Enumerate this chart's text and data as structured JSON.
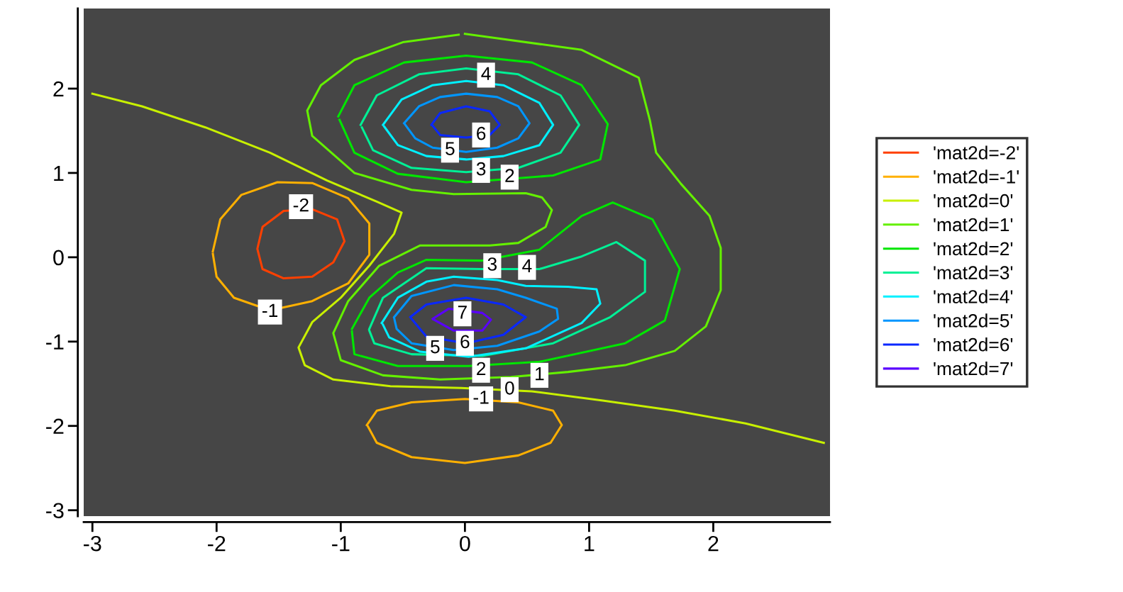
{
  "chart_data": {
    "type": "line",
    "xlim": [
      -3.07,
      2.94
    ],
    "ylim": [
      -3.07,
      2.95
    ],
    "xticks": [
      -3,
      -2,
      -1,
      0,
      1,
      2
    ],
    "yticks": [
      -3,
      -2,
      -1,
      0,
      1,
      2
    ],
    "grid": false,
    "legend": "right",
    "line_style": "solid",
    "marker": "none",
    "series": [
      {
        "name": "'mat2d=-2'",
        "color": "#ff4000",
        "x": [
          -1.67,
          -1.63,
          -1.46,
          -1.23,
          -1.03,
          -0.97,
          -1.06,
          -1.23,
          -1.46,
          -1.63,
          -1.67
        ],
        "values": [
          0.11,
          0.36,
          0.55,
          0.57,
          0.45,
          0.19,
          -0.06,
          -0.23,
          -0.25,
          -0.14,
          0.09
        ]
      },
      {
        "name": "'mat2d=-1'",
        "color": "#ffb000",
        "x": [
          -2.03,
          -1.97,
          -1.8,
          -1.51,
          -1.23,
          -0.94,
          -0.77,
          -0.77,
          -0.94,
          -1.23,
          -1.57,
          -1.86,
          -2.0,
          -2.03,
          null,
          -0.79,
          -0.71,
          -0.43,
          0,
          0.43,
          0.71,
          0.78,
          0.69,
          0.43,
          0,
          -0.43,
          -0.71,
          -0.78
        ],
        "values": [
          0.07,
          0.45,
          0.74,
          0.89,
          0.88,
          0.7,
          0.4,
          0.03,
          -0.31,
          -0.52,
          -0.63,
          -0.48,
          -0.23,
          0.04,
          null,
          -1.99,
          -1.82,
          -1.72,
          -1.68,
          -1.72,
          -1.82,
          -1.99,
          -2.2,
          -2.35,
          -2.44,
          -2.37,
          -2.2,
          -2.01
        ]
      },
      {
        "name": "'mat2d=0'",
        "color": "#c8f000",
        "x": [
          -3.0,
          -2.6,
          -2.09,
          -1.57,
          -1.11,
          -0.71,
          -0.51,
          -0.57,
          -0.77,
          -1.0,
          -1.23,
          -1.34,
          -1.29,
          -1.06,
          -0.6,
          -0.03,
          0.54,
          1.11,
          1.69,
          2.26,
          2.89
        ],
        "values": [
          1.94,
          1.79,
          1.54,
          1.24,
          0.91,
          0.66,
          0.53,
          0.28,
          -0.1,
          -0.48,
          -0.77,
          -1.07,
          -1.28,
          -1.45,
          -1.53,
          -1.55,
          -1.59,
          -1.7,
          -1.82,
          -1.97,
          -2.2
        ]
      },
      {
        "name": "'mat2d=1'",
        "color": "#64f000",
        "x": [
          0,
          0.94,
          1.4,
          1.49,
          1.54,
          1.74,
          1.97,
          2.06,
          2.06,
          1.94,
          1.69,
          1.29,
          0.83,
          0.37,
          -0.2,
          -0.66,
          -1.0,
          -1.06,
          -0.94,
          -0.69,
          -0.36,
          0.2,
          0.43,
          0.65,
          0.7,
          0.62,
          0.49,
          -0.09,
          -0.43,
          -0.89,
          -1.23,
          -1.27,
          -1.16,
          -0.89,
          -0.5,
          -0.05
        ],
        "values": [
          2.65,
          2.46,
          2.13,
          1.62,
          1.24,
          0.87,
          0.49,
          0.11,
          -0.39,
          -0.82,
          -1.11,
          -1.28,
          -1.36,
          -1.42,
          -1.45,
          -1.4,
          -1.22,
          -0.9,
          -0.52,
          -0.1,
          0.14,
          0.14,
          0.17,
          0.36,
          0.56,
          0.71,
          0.76,
          0.75,
          0.8,
          1.0,
          1.44,
          1.74,
          2.04,
          2.34,
          2.55,
          2.64
        ]
      },
      {
        "name": "'mat2d=2'",
        "color": "#00e600",
        "x": [
          -1.02,
          -0.89,
          -0.49,
          0.01,
          0.54,
          0.94,
          1.15,
          1.09,
          0.71,
          0.01,
          -0.54,
          -0.89,
          -1.01,
          null,
          -0.91,
          -0.77,
          -0.54,
          -0.31,
          0.14,
          0.6,
          0.94,
          1.19,
          1.51,
          1.73,
          1.61,
          1.29,
          0.6,
          0.03,
          -0.54,
          -0.89,
          -0.91
        ],
        "values": [
          1.67,
          2.04,
          2.31,
          2.39,
          2.31,
          2.04,
          1.58,
          1.16,
          0.97,
          0.89,
          0.99,
          1.24,
          1.63,
          null,
          -0.85,
          -0.48,
          -0.18,
          -0.03,
          -0.04,
          0.09,
          0.49,
          0.65,
          0.45,
          -0.14,
          -0.75,
          -1.02,
          -1.24,
          -1.29,
          -1.29,
          -1.15,
          -0.88
        ]
      },
      {
        "name": "'mat2d=3'",
        "color": "#00f096",
        "x": [
          -0.84,
          -0.71,
          -0.37,
          0.01,
          0.43,
          0.77,
          0.92,
          0.77,
          0.43,
          0.01,
          -0.43,
          -0.74,
          -0.83,
          null,
          -0.77,
          -0.66,
          -0.31,
          0.14,
          0.6,
          0.94,
          1.22,
          1.45,
          1.45,
          1.17,
          0.71,
          0.14,
          -0.43,
          -0.73,
          -0.77
        ],
        "values": [
          1.57,
          1.92,
          2.17,
          2.24,
          2.17,
          1.92,
          1.57,
          1.24,
          1.06,
          1.01,
          1.06,
          1.27,
          1.54,
          null,
          -0.85,
          -0.48,
          -0.13,
          -0.14,
          -0.14,
          0.01,
          0.18,
          -0.04,
          -0.41,
          -0.71,
          -1.02,
          -1.17,
          -1.15,
          -1.02,
          -0.87
        ]
      },
      {
        "name": "'mat2d=4'",
        "color": "#00f0ff",
        "x": [
          -0.66,
          -0.51,
          -0.26,
          0.01,
          0.31,
          0.6,
          0.71,
          0.6,
          0.31,
          0.01,
          -0.31,
          -0.54,
          -0.65,
          null,
          -0.67,
          -0.54,
          -0.31,
          -0.09,
          0.26,
          0.49,
          0.83,
          1.06,
          1.09,
          0.94,
          0.49,
          0.03,
          -0.36,
          -0.61,
          -0.66
        ],
        "values": [
          1.57,
          1.87,
          2.04,
          2.09,
          2.04,
          1.83,
          1.57,
          1.33,
          1.2,
          1.16,
          1.2,
          1.33,
          1.55,
          null,
          -0.78,
          -0.48,
          -0.29,
          -0.23,
          -0.27,
          -0.34,
          -0.35,
          -0.38,
          -0.55,
          -0.78,
          -1.08,
          -1.18,
          -1.12,
          -0.95,
          -0.8
        ]
      },
      {
        "name": "'mat2d=5'",
        "color": "#0096ff",
        "x": [
          -0.49,
          -0.37,
          -0.2,
          0.01,
          0.26,
          0.43,
          0.52,
          0.43,
          0.26,
          0.01,
          -0.26,
          -0.4,
          -0.48,
          null,
          -0.57,
          -0.43,
          -0.09,
          0.26,
          0.49,
          0.74,
          0.75,
          0.6,
          0.26,
          -0.09,
          -0.43,
          -0.55,
          -0.57
        ],
        "values": [
          1.59,
          1.79,
          1.9,
          1.94,
          1.9,
          1.79,
          1.59,
          1.41,
          1.3,
          1.25,
          1.3,
          1.41,
          1.57,
          null,
          -0.71,
          -0.46,
          -0.33,
          -0.38,
          -0.48,
          -0.61,
          -0.73,
          -0.88,
          -1.05,
          -1.1,
          -1.02,
          -0.85,
          -0.72
        ]
      },
      {
        "name": "'mat2d=6'",
        "color": "#0a28ff",
        "x": [
          -0.27,
          -0.2,
          0.01,
          0.2,
          0.28,
          0.2,
          0.01,
          -0.2,
          -0.26,
          null,
          -0.44,
          -0.31,
          0.01,
          0.31,
          0.49,
          0.31,
          0.01,
          -0.31,
          -0.43
        ],
        "values": [
          1.57,
          1.71,
          1.79,
          1.73,
          1.57,
          1.45,
          1.42,
          1.45,
          1.56,
          null,
          -0.71,
          -0.56,
          -0.48,
          -0.56,
          -0.71,
          -0.92,
          -1.02,
          -0.94,
          -0.73
        ]
      },
      {
        "name": "'mat2d=7'",
        "color": "#5a00ff",
        "x": [
          -0.26,
          -0.13,
          0.14,
          0.21,
          0.14,
          -0.09,
          -0.25
        ],
        "values": [
          -0.73,
          -0.61,
          -0.66,
          -0.74,
          -0.87,
          -0.87,
          -0.74
        ]
      }
    ],
    "annotations": [
      {
        "text": "4",
        "x": 0.17,
        "y": 2.16
      },
      {
        "text": "6",
        "x": 0.13,
        "y": 1.45
      },
      {
        "text": "5",
        "x": -0.12,
        "y": 1.27
      },
      {
        "text": "3",
        "x": 0.13,
        "y": 1.03
      },
      {
        "text": "2",
        "x": 0.36,
        "y": 0.95
      },
      {
        "text": "-2",
        "x": -1.32,
        "y": 0.6
      },
      {
        "text": "-1",
        "x": -1.57,
        "y": -0.65
      },
      {
        "text": "3",
        "x": 0.22,
        "y": -0.1
      },
      {
        "text": "4",
        "x": 0.5,
        "y": -0.12
      },
      {
        "text": "7",
        "x": -0.02,
        "y": -0.67
      },
      {
        "text": "5",
        "x": -0.24,
        "y": -1.08
      },
      {
        "text": "6",
        "x": 0,
        "y": -1.02
      },
      {
        "text": "2",
        "x": 0.13,
        "y": -1.34
      },
      {
        "text": "1",
        "x": 0.6,
        "y": -1.4
      },
      {
        "text": "0",
        "x": 0.36,
        "y": -1.57
      },
      {
        "text": "-1",
        "x": 0.13,
        "y": -1.68
      }
    ]
  }
}
